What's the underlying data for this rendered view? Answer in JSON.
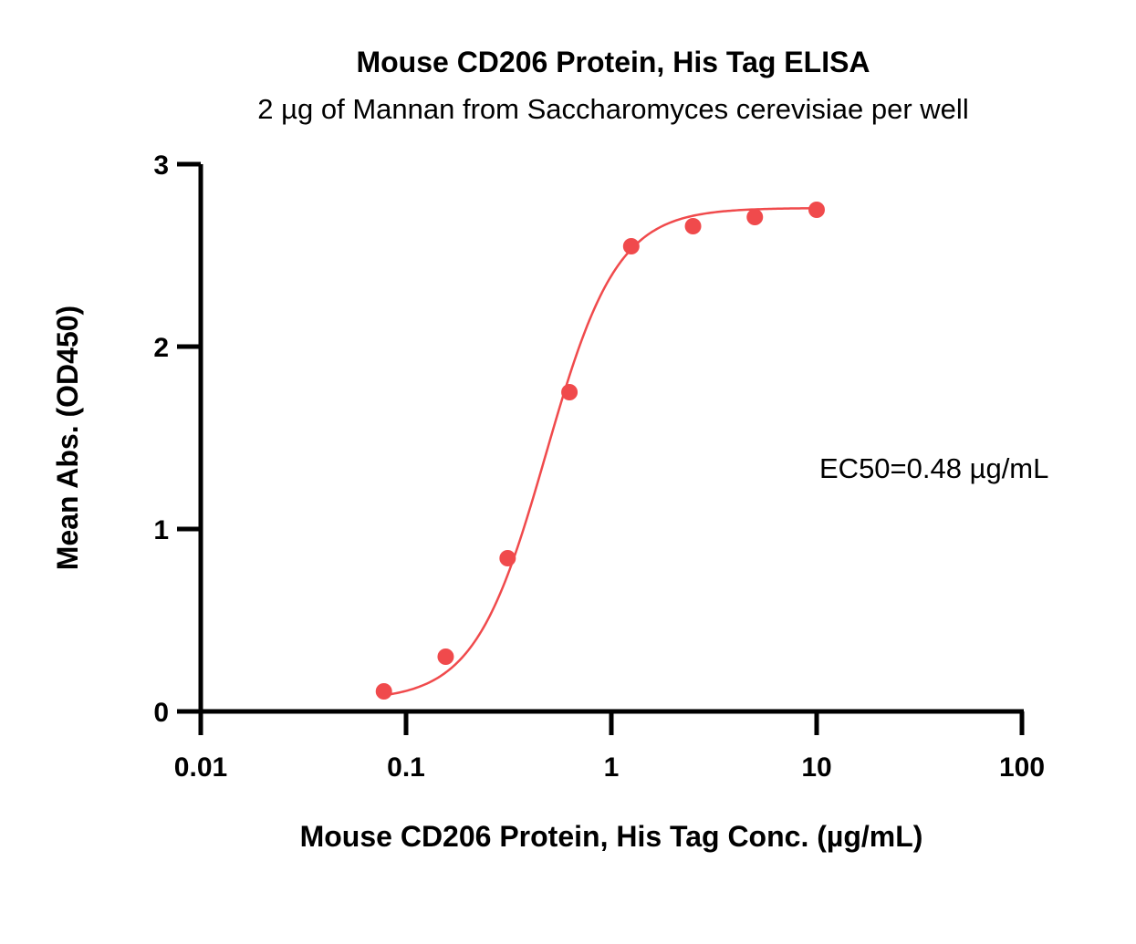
{
  "chart_data": {
    "type": "scatter",
    "title": "Mouse CD206 Protein, His Tag ELISA",
    "subtitle": "2 µg of Mannan from Saccharomyces cerevisiae per well",
    "xlabel": "Mouse CD206 Protein, His Tag Conc. (µg/mL)",
    "ylabel": "Mean Abs. (OD450)",
    "x_scale": "log",
    "xlim": [
      0.01,
      100
    ],
    "ylim": [
      0,
      3
    ],
    "x_ticks": [
      "0.01",
      "0.1",
      "1",
      "10",
      "100"
    ],
    "y_ticks": [
      "0",
      "1",
      "2",
      "3"
    ],
    "annotation": "EC50=0.48 µg/mL",
    "colors": {
      "series": "#f04a4c",
      "axis": "#000000"
    },
    "series": [
      {
        "name": "Mouse CD206 Protein, His Tag",
        "x": [
          0.078,
          0.156,
          0.3125,
          0.625,
          1.25,
          2.5,
          5,
          10
        ],
        "y": [
          0.11,
          0.3,
          0.84,
          1.75,
          2.55,
          2.66,
          2.71,
          2.75
        ]
      }
    ],
    "fit": {
      "model": "4PL",
      "bottom": 0.06,
      "top": 2.76,
      "ec50": 0.48,
      "hill": 2.5
    }
  }
}
